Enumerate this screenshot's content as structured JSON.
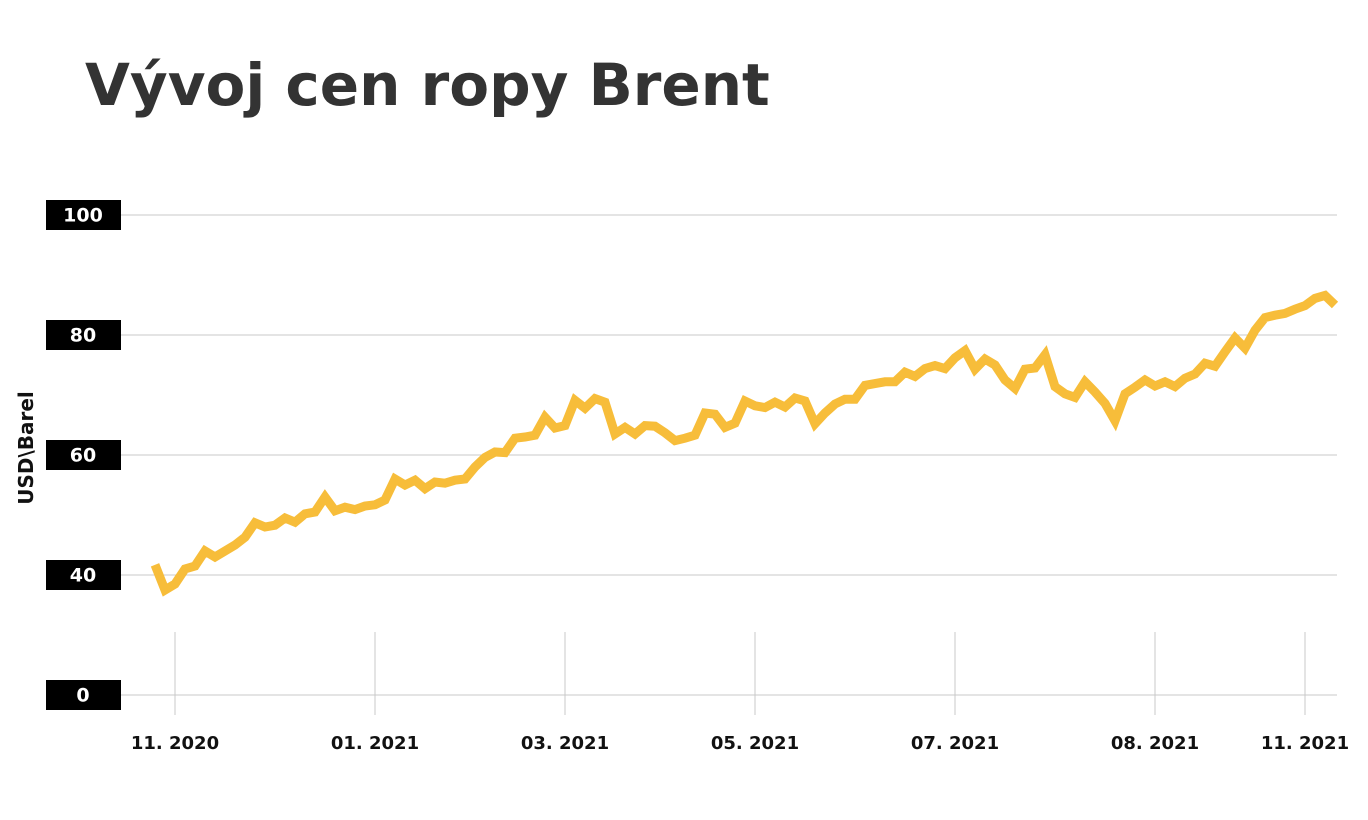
{
  "chart_data": {
    "type": "line",
    "title": "Vývoj cen ropy Brent",
    "y_label": "USD\\Barel",
    "color": "#f7bd3a",
    "categories": [
      null,
      null,
      "11. 2020",
      null,
      null,
      null,
      null,
      null,
      null,
      null,
      null,
      null,
      null,
      null,
      null,
      null,
      null,
      null,
      null,
      null,
      null,
      null,
      "01. 2021",
      null,
      null,
      null,
      null,
      null,
      null,
      null,
      null,
      null,
      null,
      null,
      null,
      null,
      null,
      null,
      null,
      null,
      null,
      "03. 2021",
      null,
      null,
      null,
      null,
      null,
      null,
      null,
      null,
      null,
      null,
      null,
      null,
      null,
      null,
      null,
      null,
      null,
      null,
      "05. 2021",
      null,
      null,
      null,
      null,
      null,
      null,
      null,
      null,
      null,
      null,
      null,
      null,
      null,
      null,
      null,
      null,
      null,
      null,
      null,
      "07. 2021",
      null,
      null,
      null,
      null,
      null,
      null,
      null,
      null,
      null,
      null,
      null,
      null,
      null,
      null,
      null,
      null,
      null,
      null,
      null,
      "08. 2021",
      null,
      null,
      null,
      null,
      null,
      null,
      null,
      null,
      null,
      null,
      null,
      null,
      null,
      null,
      "11. 2021",
      null,
      null,
      null
    ],
    "values": [
      41.7,
      37.5,
      38.5,
      41,
      41.5,
      44,
      43,
      44,
      45,
      46.3,
      48.7,
      48,
      48.3,
      49.5,
      48.8,
      50.2,
      50.5,
      53,
      50.7,
      51.3,
      50.9,
      51.5,
      51.7,
      52.5,
      56,
      55,
      55.8,
      54.4,
      55.5,
      55.3,
      55.8,
      56,
      58,
      59.6,
      60.5,
      60.4,
      62.8,
      63,
      63.3,
      66.3,
      64.5,
      64.9,
      69.1,
      67.8,
      69.4,
      68.8,
      63.5,
      64.6,
      63.5,
      64.9,
      64.8,
      63.7,
      62.4,
      62.8,
      63.3,
      67,
      66.8,
      64.6,
      65.3,
      69,
      68.2,
      67.9,
      68.8,
      68,
      69.5,
      69,
      65.2,
      67,
      68.5,
      69.3,
      69.3,
      71.6,
      71.9,
      72.2,
      72.2,
      73.8,
      73.1,
      74.4,
      74.9,
      74.4,
      76.2,
      77.4,
      74.3,
      76,
      75,
      72.5,
      71.1,
      74.3,
      74.5,
      76.7,
      71.4,
      70.2,
      69.6,
      72.2,
      70.5,
      68.6,
      65.7,
      70.2,
      71.3,
      72.5,
      71.5,
      72.2,
      71.4,
      72.8,
      73.5,
      75.3,
      74.8,
      77.2,
      79.5,
      77.8,
      80.8,
      82.9,
      83.3,
      83.6,
      84.3,
      84.9,
      86.1,
      86.6,
      85
    ],
    "ylim": [
      0,
      100
    ],
    "ybreak": [
      0,
      20
    ],
    "yticks": [
      100,
      80,
      60,
      40,
      0
    ],
    "grid": true
  }
}
